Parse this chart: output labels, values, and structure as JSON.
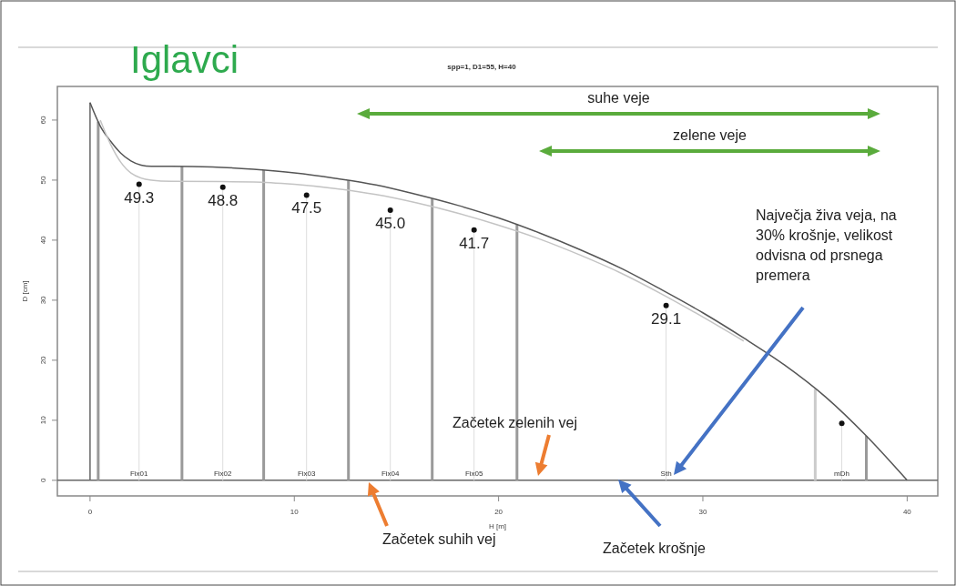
{
  "chart_data": {
    "type": "line",
    "title": "Iglavci",
    "subtitle": "spp=1, D1=55, H=40",
    "xlabel": "H [m]",
    "ylabel": "D [cm]",
    "xlim": [
      -1.6,
      41.5
    ],
    "ylim": [
      -2.6,
      65.6
    ],
    "xticks": [
      0,
      10,
      20,
      30,
      40
    ],
    "yticks": [
      0,
      10,
      20,
      30,
      40,
      50,
      60
    ],
    "series": [
      {
        "color": "#555555",
        "x": [
          0,
          0.5,
          1,
          1.5,
          2,
          2.5,
          3,
          4,
          6,
          8,
          10,
          12,
          14,
          16,
          18,
          20,
          22,
          24,
          26,
          28,
          30,
          32,
          34,
          36,
          38,
          40
        ],
        "values": [
          62.9,
          59,
          56.5,
          54.5,
          53.2,
          52.5,
          52.3,
          52.3,
          52.2,
          51.8,
          51.2,
          50.3,
          49.2,
          47.6,
          45.8,
          43.7,
          41.2,
          38.4,
          35.3,
          31.7,
          27.9,
          23.7,
          19.2,
          13.9,
          7.4,
          0
        ]
      },
      {
        "color": "#c4c4c4",
        "x": [
          0.5,
          1,
          1.5,
          2,
          3,
          4,
          8,
          10,
          12,
          14,
          16,
          18,
          20,
          22,
          24,
          26,
          28,
          30,
          32
        ],
        "values": [
          60,
          56,
          53,
          51.2,
          50,
          49.8,
          49.7,
          49.3,
          48.6,
          47.6,
          46.2,
          44.5,
          42.5,
          40.2,
          37.5,
          34.5,
          31,
          27.2,
          23.2
        ]
      },
      {
        "type": "lollipop",
        "color": "#111111",
        "x": [
          2.4,
          6.5,
          10.6,
          14.7,
          18.8,
          28.2,
          36.8
        ],
        "values": [
          49.3,
          48.8,
          47.5,
          45.0,
          41.7,
          29.1,
          9.5
        ],
        "value_labels": [
          "49.3",
          "48.8",
          "47.5",
          "45.0",
          "41.7",
          "29.1",
          null
        ]
      }
    ],
    "ref_lines": [
      {
        "axis": "y",
        "value": 0,
        "color": "#666666"
      },
      {
        "axis": "x",
        "value": 0,
        "color": "#666666"
      },
      {
        "axis": "x",
        "value": 0.4,
        "color": "#9a9a9a"
      },
      {
        "axis": "x",
        "value": 4.5,
        "color": "#9a9a9a"
      },
      {
        "axis": "x",
        "value": 8.5,
        "color": "#9a9a9a"
      },
      {
        "axis": "x",
        "value": 12.65,
        "color": "#9a9a9a"
      },
      {
        "axis": "x",
        "value": 16.75,
        "color": "#9a9a9a"
      },
      {
        "axis": "x",
        "value": 20.9,
        "color": "#9a9a9a"
      },
      {
        "axis": "x",
        "value": 35.5,
        "color": "#cccccc"
      },
      {
        "axis": "x",
        "value": 38.0,
        "color": "#9a9a9a"
      }
    ],
    "annotations": [
      "suhe veje",
      "zelene veje",
      "Začetek suhih vej",
      "Začetek zelenih vej",
      "Začetek krošnje",
      "Največja živa veja, na 30% krošnje, velikost odvisna od prsnega premera",
      {
        "text": "Fix01",
        "x": 2.4,
        "y": 0
      },
      {
        "text": "Fix02",
        "x": 6.5,
        "y": 0
      },
      {
        "text": "Fix03",
        "x": 10.6,
        "y": 0
      },
      {
        "text": "Fix04",
        "x": 14.7,
        "y": 0
      },
      {
        "text": "Fix05",
        "x": 18.8,
        "y": 0
      },
      {
        "text": "Sth",
        "x": 28.2,
        "y": 0
      },
      {
        "text": "mDh",
        "x": 36.8,
        "y": 0
      }
    ]
  }
}
